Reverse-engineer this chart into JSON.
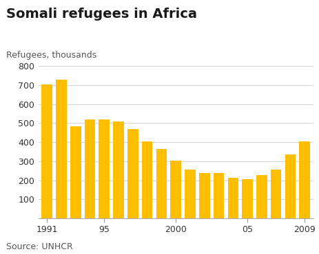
{
  "title": "Somali refugees in Africa",
  "ylabel": "Refugees, thousands",
  "source": "Source: UNHCR",
  "bar_color": "#FFBF00",
  "background_color": "#ffffff",
  "years": [
    1991,
    1992,
    1993,
    1994,
    1995,
    1996,
    1997,
    1998,
    1999,
    2000,
    2001,
    2002,
    2003,
    2004,
    2005,
    2006,
    2007,
    2008,
    2009
  ],
  "values": [
    705,
    727,
    485,
    518,
    518,
    508,
    468,
    405,
    365,
    303,
    255,
    240,
    237,
    215,
    205,
    228,
    258,
    336,
    405
  ],
  "xtick_positions": [
    1991,
    1995,
    2000,
    2005,
    2009
  ],
  "xtick_labels": [
    "1991",
    "95",
    "2000",
    "05",
    "2009"
  ],
  "ylim": [
    0,
    800
  ],
  "ytick_values": [
    0,
    100,
    200,
    300,
    400,
    500,
    600,
    700,
    800
  ],
  "title_fontsize": 14,
  "ylabel_fontsize": 9,
  "tick_fontsize": 9,
  "source_fontsize": 9,
  "bar_width": 0.75,
  "xlim": [
    1990.4,
    2009.6
  ]
}
